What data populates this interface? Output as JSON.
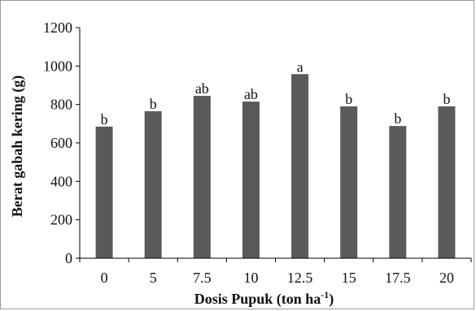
{
  "chart_data": {
    "type": "bar",
    "categories": [
      "0",
      "5",
      "7.5",
      "10",
      "12.5",
      "15",
      "17.5",
      "20"
    ],
    "values": [
      685,
      765,
      845,
      815,
      958,
      790,
      688,
      790
    ],
    "bar_labels": [
      "b",
      "b",
      "ab",
      "ab",
      "a",
      "b",
      "b",
      "b"
    ],
    "xlabel": "Dosis Pupuk (ton ha",
    "xlabel_sup": "-1",
    "xlabel_end": ")",
    "ylabel": "Berat gabah kering (g)",
    "ylim": [
      0,
      1200
    ],
    "yticks": [
      "0",
      "200",
      "400",
      "600",
      "800",
      "1000",
      "1200"
    ],
    "bar_color": "#5a5a5a",
    "grid": false
  }
}
